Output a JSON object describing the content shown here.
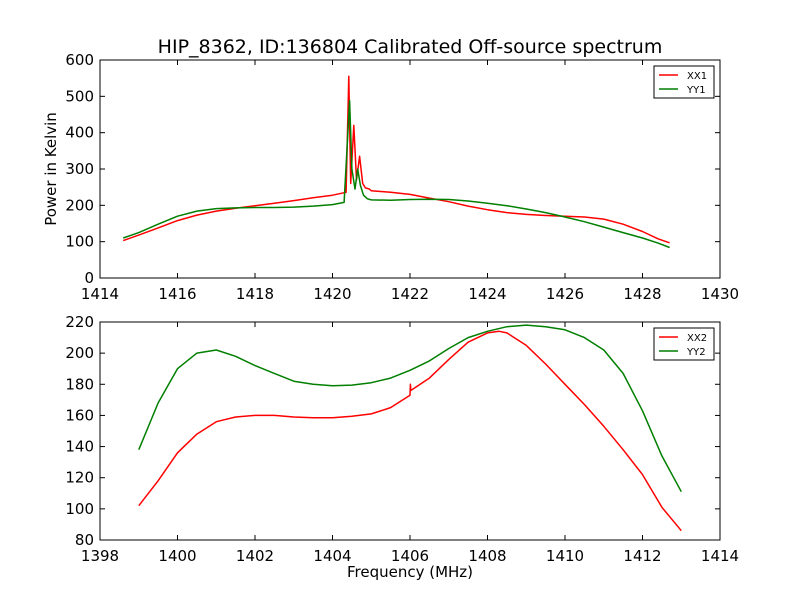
{
  "title": "HIP_8362, ID:136804 Calibrated Off-source spectrum",
  "colors": {
    "red": "#ff0000",
    "green": "#007f00",
    "axis": "#000000"
  },
  "chart_data": [
    {
      "type": "line",
      "title": "HIP_8362, ID:136804 Calibrated Off-source spectrum",
      "xlabel": "",
      "ylabel": "Power in Kelvin",
      "xlim": [
        1414,
        1430
      ],
      "ylim": [
        0,
        600
      ],
      "xticks": [
        1414,
        1416,
        1418,
        1420,
        1422,
        1424,
        1426,
        1428,
        1430
      ],
      "yticks": [
        0,
        100,
        200,
        300,
        400,
        500,
        600
      ],
      "legend": "top-right",
      "grid": false,
      "series": [
        {
          "name": "XX1",
          "color": "#ff0000",
          "points": [
            [
              1414.6,
              103
            ],
            [
              1415.0,
              118
            ],
            [
              1415.5,
              138
            ],
            [
              1416.0,
              158
            ],
            [
              1416.5,
              173
            ],
            [
              1417.0,
              184
            ],
            [
              1417.5,
              192
            ],
            [
              1418.0,
              199
            ],
            [
              1418.5,
              206
            ],
            [
              1419.0,
              213
            ],
            [
              1419.5,
              221
            ],
            [
              1420.0,
              228
            ],
            [
              1420.35,
              236
            ],
            [
              1420.42,
              555
            ],
            [
              1420.47,
              260
            ],
            [
              1420.55,
              420
            ],
            [
              1420.62,
              270
            ],
            [
              1420.7,
              335
            ],
            [
              1420.78,
              260
            ],
            [
              1420.85,
              248
            ],
            [
              1420.95,
              245
            ],
            [
              1421.0,
              240
            ],
            [
              1421.5,
              236
            ],
            [
              1422.0,
              230
            ],
            [
              1422.5,
              220
            ],
            [
              1423.0,
              210
            ],
            [
              1423.5,
              198
            ],
            [
              1424.0,
              188
            ],
            [
              1424.5,
              180
            ],
            [
              1425.0,
              175
            ],
            [
              1425.5,
              172
            ],
            [
              1426.0,
              170
            ],
            [
              1426.5,
              168
            ],
            [
              1427.0,
              162
            ],
            [
              1427.5,
              148
            ],
            [
              1428.0,
              128
            ],
            [
              1428.4,
              108
            ],
            [
              1428.7,
              97
            ]
          ]
        },
        {
          "name": "YY1",
          "color": "#007f00",
          "points": [
            [
              1414.6,
              110
            ],
            [
              1415.0,
              125
            ],
            [
              1415.5,
              148
            ],
            [
              1416.0,
              170
            ],
            [
              1416.5,
              184
            ],
            [
              1417.0,
              191
            ],
            [
              1417.5,
              193
            ],
            [
              1418.0,
              194
            ],
            [
              1418.5,
              194
            ],
            [
              1419.0,
              195
            ],
            [
              1419.5,
              198
            ],
            [
              1420.0,
              202
            ],
            [
              1420.3,
              208
            ],
            [
              1420.44,
              488
            ],
            [
              1420.5,
              300
            ],
            [
              1420.58,
              245
            ],
            [
              1420.65,
              300
            ],
            [
              1420.72,
              255
            ],
            [
              1420.8,
              228
            ],
            [
              1420.9,
              218
            ],
            [
              1421.0,
              215
            ],
            [
              1421.5,
              214
            ],
            [
              1422.0,
              216
            ],
            [
              1422.5,
              217
            ],
            [
              1423.0,
              216
            ],
            [
              1423.5,
              212
            ],
            [
              1424.0,
              206
            ],
            [
              1424.5,
              199
            ],
            [
              1425.0,
              190
            ],
            [
              1425.5,
              180
            ],
            [
              1426.0,
              168
            ],
            [
              1426.5,
              155
            ],
            [
              1427.0,
              140
            ],
            [
              1427.5,
              125
            ],
            [
              1428.0,
              110
            ],
            [
              1428.4,
              96
            ],
            [
              1428.7,
              84
            ]
          ]
        }
      ]
    },
    {
      "type": "line",
      "title": "",
      "xlabel": "Frequency (MHz)",
      "ylabel": "",
      "xlim": [
        1398,
        1414
      ],
      "ylim": [
        80,
        220
      ],
      "xticks": [
        1398,
        1400,
        1402,
        1404,
        1406,
        1408,
        1410,
        1412,
        1414
      ],
      "yticks": [
        80,
        100,
        120,
        140,
        160,
        180,
        200,
        220
      ],
      "legend": "top-right",
      "grid": false,
      "series": [
        {
          "name": "XX2",
          "color": "#ff0000",
          "points": [
            [
              1399.0,
              102
            ],
            [
              1399.5,
              118
            ],
            [
              1400.0,
              136
            ],
            [
              1400.5,
              148
            ],
            [
              1401.0,
              156
            ],
            [
              1401.5,
              159
            ],
            [
              1402.0,
              160
            ],
            [
              1402.5,
              160
            ],
            [
              1403.0,
              159
            ],
            [
              1403.5,
              158.5
            ],
            [
              1404.0,
              158.5
            ],
            [
              1404.5,
              159.5
            ],
            [
              1405.0,
              161
            ],
            [
              1405.5,
              165
            ],
            [
              1406.0,
              173
            ],
            [
              1406.01,
              180
            ],
            [
              1406.02,
              176
            ],
            [
              1406.5,
              184
            ],
            [
              1407.0,
              196
            ],
            [
              1407.5,
              207
            ],
            [
              1408.0,
              213
            ],
            [
              1408.3,
              214
            ],
            [
              1408.5,
              213
            ],
            [
              1409.0,
              205
            ],
            [
              1409.5,
              193
            ],
            [
              1410.0,
              180
            ],
            [
              1410.5,
              167
            ],
            [
              1411.0,
              153
            ],
            [
              1411.5,
              138
            ],
            [
              1412.0,
              122
            ],
            [
              1412.5,
              101
            ],
            [
              1413.0,
              86
            ]
          ]
        },
        {
          "name": "YY2",
          "color": "#007f00",
          "points": [
            [
              1399.0,
              138
            ],
            [
              1399.5,
              168
            ],
            [
              1400.0,
              190
            ],
            [
              1400.5,
              200
            ],
            [
              1401.0,
              202
            ],
            [
              1401.5,
              198
            ],
            [
              1402.0,
              192
            ],
            [
              1402.5,
              187
            ],
            [
              1403.0,
              182
            ],
            [
              1403.5,
              180
            ],
            [
              1404.0,
              179
            ],
            [
              1404.5,
              179.5
            ],
            [
              1405.0,
              181
            ],
            [
              1405.5,
              184
            ],
            [
              1406.0,
              189
            ],
            [
              1406.5,
              195
            ],
            [
              1407.0,
              203
            ],
            [
              1407.5,
              210
            ],
            [
              1408.0,
              214
            ],
            [
              1408.5,
              217
            ],
            [
              1409.0,
              218
            ],
            [
              1409.5,
              217
            ],
            [
              1410.0,
              215
            ],
            [
              1410.5,
              210
            ],
            [
              1411.0,
              202
            ],
            [
              1411.5,
              187
            ],
            [
              1412.0,
              163
            ],
            [
              1412.5,
              134
            ],
            [
              1413.0,
              111
            ]
          ]
        }
      ]
    }
  ]
}
